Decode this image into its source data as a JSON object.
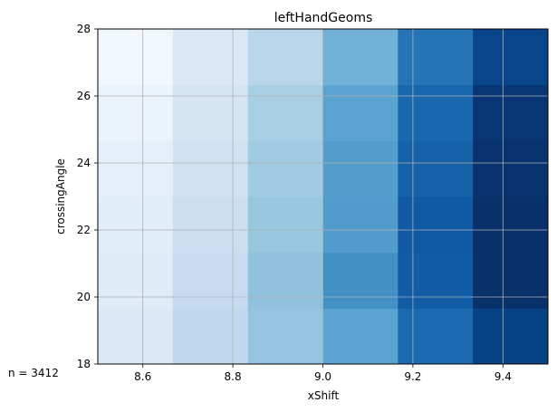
{
  "chart_data": {
    "type": "heatmap",
    "title": "leftHandGeoms",
    "xlabel": "xShift",
    "ylabel": "crossingAngle",
    "annotation": "n = 3412",
    "xlim": [
      8.5,
      9.5
    ],
    "ylim": [
      18,
      28
    ],
    "x_edges": [
      8.5,
      8.6667,
      8.8333,
      9.0,
      9.1667,
      9.3333,
      9.5
    ],
    "y_edges": [
      18,
      19.667,
      21.333,
      23.0,
      24.667,
      26.333,
      28
    ],
    "xticks": [
      8.6,
      8.8,
      9.0,
      9.2,
      9.4
    ],
    "xtick_labels": [
      "8.6",
      "8.8",
      "9.0",
      "9.2",
      "9.4"
    ],
    "yticks": [
      18,
      20,
      22,
      24,
      26,
      28
    ],
    "ytick_labels": [
      "18",
      "20",
      "22",
      "24",
      "26",
      "28"
    ],
    "colormap": "Blues",
    "grid": true,
    "values": [
      [
        0.14,
        0.27,
        0.4,
        0.55,
        0.78,
        0.93
      ],
      [
        0.12,
        0.25,
        0.41,
        0.63,
        0.83,
        1.0
      ],
      [
        0.11,
        0.22,
        0.39,
        0.58,
        0.84,
        1.0
      ],
      [
        0.09,
        0.2,
        0.37,
        0.57,
        0.81,
        0.99
      ],
      [
        0.06,
        0.17,
        0.34,
        0.55,
        0.79,
        0.98
      ],
      [
        0.03,
        0.14,
        0.29,
        0.48,
        0.74,
        0.92
      ]
    ]
  }
}
